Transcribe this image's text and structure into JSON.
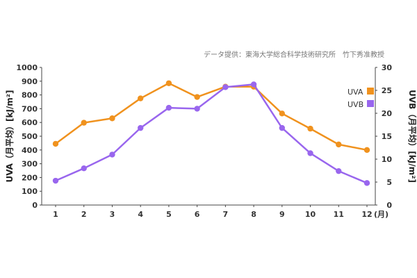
{
  "chart_data": {
    "type": "line",
    "source_note": "データ提供：東海大学総合科学技術研究所　竹下秀准教授",
    "categories": [
      "1",
      "2",
      "3",
      "4",
      "5",
      "6",
      "7",
      "8",
      "9",
      "10",
      "11",
      "12"
    ],
    "x_unit_label": "(月)",
    "left_axis": {
      "label": "UVA（月平均）[kJ/m²]",
      "ylim": [
        0,
        1000
      ],
      "ticks": [
        "0",
        "100",
        "200",
        "300",
        "400",
        "500",
        "600",
        "700",
        "800",
        "900",
        "1000"
      ]
    },
    "right_axis": {
      "label": "UVB（月平均）[kJ/m²]",
      "ylim": [
        0,
        30
      ],
      "ticks": [
        "0",
        "5",
        "10",
        "15",
        "20",
        "25",
        "30"
      ]
    },
    "series": [
      {
        "name": "UVA",
        "axis": "left",
        "color": "#F0921E",
        "values": [
          445,
          598,
          630,
          775,
          885,
          785,
          860,
          860,
          665,
          555,
          440,
          400
        ]
      },
      {
        "name": "UVB",
        "axis": "right",
        "color": "#9966EE",
        "values": [
          5.3,
          8.0,
          11.0,
          16.8,
          21.2,
          21.0,
          25.7,
          26.3,
          16.8,
          11.3,
          7.4,
          4.8
        ]
      }
    ],
    "grid": false,
    "legend_position": "right"
  }
}
